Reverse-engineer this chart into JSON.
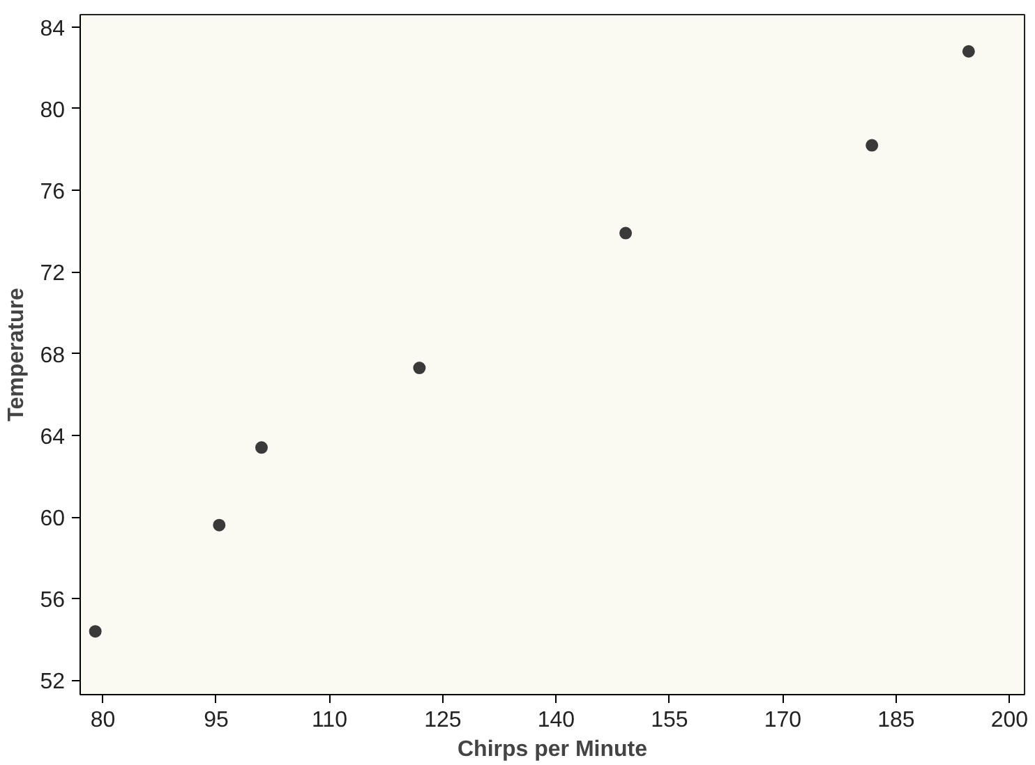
{
  "chart_data": {
    "type": "scatter",
    "xlabel": "Chirps per Minute",
    "ylabel": "Temperature",
    "x": [
      79.0,
      95.4,
      101.0,
      121.9,
      149.2,
      181.8,
      194.6
    ],
    "values": [
      54.4,
      59.6,
      63.4,
      67.3,
      73.9,
      78.2,
      82.8
    ],
    "color": "#3a3a3a",
    "marker": "circle",
    "xlim": [
      77,
      202
    ],
    "xticks": [
      80,
      95,
      110,
      125,
      140,
      155,
      170,
      185,
      200
    ],
    "ylim": [
      51.3,
      84.6
    ],
    "yticks": [
      52,
      56,
      60,
      64,
      68,
      72,
      76,
      80,
      84
    ],
    "grid": false
  }
}
